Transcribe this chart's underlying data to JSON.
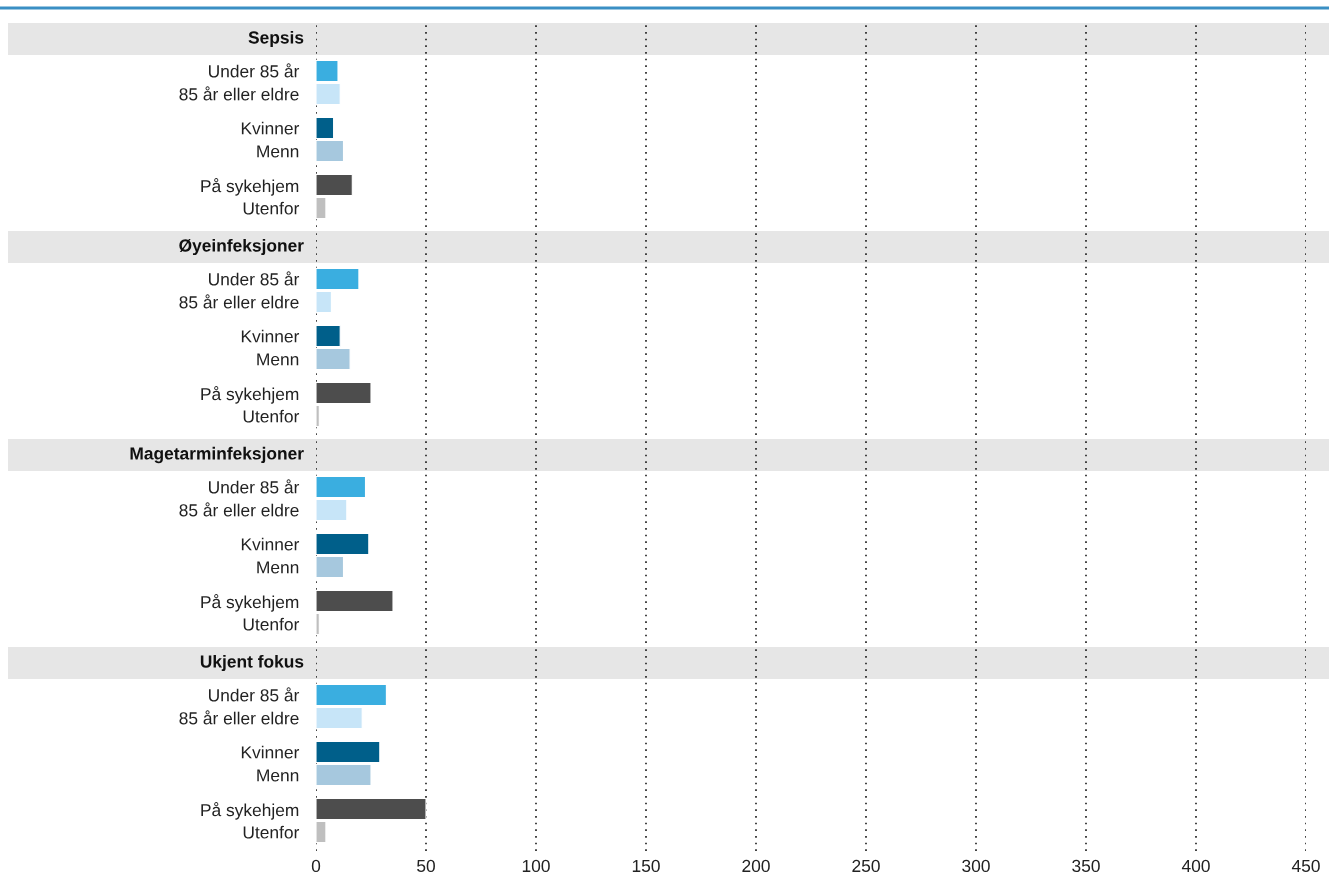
{
  "chart_data": [
    {
      "type": "bar",
      "orientation": "horizontal",
      "title": "Sepsis",
      "categories": [
        "Under 85 år",
        "85 år eller eldre",
        "Kvinner",
        "Menn",
        "På sykehjem",
        "Utenfor"
      ],
      "values": [
        10,
        11,
        8,
        12.5,
        16.5,
        4.5
      ],
      "colors": [
        "#3aaee0",
        "#c7e5f8",
        "#005f8a",
        "#a6c8de",
        "#4d4d4d",
        "#bfbfbf"
      ],
      "xlim": [
        0,
        450
      ],
      "xticks": [
        0,
        50,
        100,
        150,
        200,
        250,
        300,
        350,
        400,
        450
      ],
      "grid": "x",
      "tick_labels": "y"
    },
    {
      "type": "bar",
      "orientation": "horizontal",
      "title": "Øyeinfeksjoner",
      "categories": [
        "Under 85 år",
        "85 år eller eldre",
        "Kvinner",
        "Menn",
        "På sykehjem",
        "Utenfor"
      ],
      "values": [
        19.5,
        7,
        11,
        15.5,
        25,
        1.5
      ],
      "colors": [
        "#3aaee0",
        "#c7e5f8",
        "#005f8a",
        "#a6c8de",
        "#4d4d4d",
        "#bfbfbf"
      ],
      "xlim": [
        0,
        450
      ],
      "xticks": [
        0,
        50,
        100,
        150,
        200,
        250,
        300,
        350,
        400,
        450
      ],
      "grid": "x",
      "tick_labels": "y"
    },
    {
      "type": "bar",
      "orientation": "horizontal",
      "title": "Magetarminfeksjoner",
      "categories": [
        "Under 85 år",
        "85 år eller eldre",
        "Kvinner",
        "Menn",
        "På sykehjem",
        "Utenfor"
      ],
      "values": [
        22.5,
        14,
        24,
        12.5,
        35,
        1.5
      ],
      "colors": [
        "#3aaee0",
        "#c7e5f8",
        "#005f8a",
        "#a6c8de",
        "#4d4d4d",
        "#bfbfbf"
      ],
      "xlim": [
        0,
        450
      ],
      "xticks": [
        0,
        50,
        100,
        150,
        200,
        250,
        300,
        350,
        400,
        450
      ],
      "grid": "x",
      "tick_labels": "y"
    },
    {
      "type": "bar",
      "orientation": "horizontal",
      "title": "Ukjent fokus",
      "categories": [
        "Under 85 år",
        "85 år eller eldre",
        "Kvinner",
        "Menn",
        "På sykehjem",
        "Utenfor"
      ],
      "values": [
        32,
        21,
        29,
        25,
        50,
        4.5
      ],
      "colors": [
        "#3aaee0",
        "#c7e5f8",
        "#005f8a",
        "#a6c8de",
        "#4d4d4d",
        "#bfbfbf"
      ],
      "xlim": [
        0,
        450
      ],
      "xticks": [
        0,
        50,
        100,
        150,
        200,
        250,
        300,
        350,
        400,
        450
      ],
      "grid": "x"
    }
  ]
}
